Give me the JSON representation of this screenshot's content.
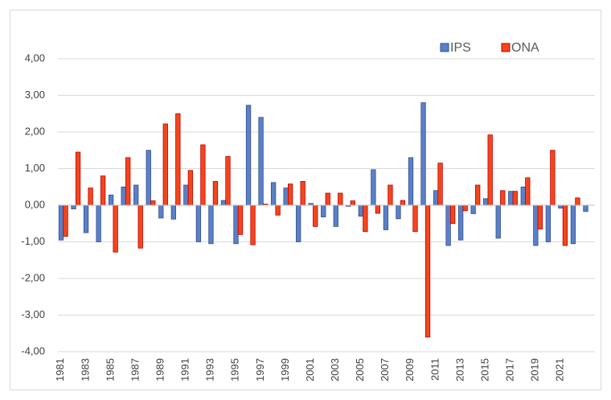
{
  "chart_data": {
    "type": "bar",
    "categories": [
      "1981",
      null,
      "1983",
      null,
      "1985",
      null,
      "1987",
      null,
      "1989",
      null,
      "1991",
      null,
      "1993",
      null,
      "1995",
      null,
      "1997",
      null,
      "1999",
      null,
      "2001",
      null,
      "2003",
      null,
      "2005",
      null,
      "2007",
      null,
      "2009",
      null,
      "2011",
      null,
      "2013",
      null,
      "2015",
      null,
      "2017",
      null,
      "2019",
      null,
      "2021",
      null,
      null
    ],
    "series": [
      {
        "name": "IPS",
        "color": "#5b80c8",
        "values": [
          -0.95,
          -0.1,
          -0.75,
          -1.0,
          0.28,
          0.5,
          0.55,
          1.5,
          -0.35,
          -0.38,
          0.55,
          -1.0,
          -1.05,
          0.13,
          -1.05,
          2.73,
          2.4,
          0.62,
          0.47,
          -1.0,
          0.05,
          -0.32,
          -0.58,
          -0.03,
          -0.3,
          0.97,
          -0.67,
          -0.37,
          1.3,
          2.8,
          0.4,
          -1.1,
          -0.95,
          -0.23,
          0.18,
          -0.9,
          0.38,
          0.5,
          -1.1,
          -1.0,
          -0.08,
          -1.05,
          -0.17
        ]
      },
      {
        "name": "ONA",
        "color": "#f4461c",
        "values": [
          -0.85,
          1.45,
          0.47,
          0.8,
          -1.28,
          1.3,
          -1.17,
          0.12,
          2.22,
          2.5,
          0.95,
          1.65,
          0.65,
          1.33,
          -0.8,
          -1.08,
          0.03,
          -0.27,
          0.58,
          0.65,
          -0.58,
          0.33,
          0.33,
          0.12,
          -0.72,
          -0.22,
          0.55,
          0.13,
          -0.72,
          -3.6,
          1.15,
          -0.5,
          -0.15,
          0.55,
          1.92,
          0.4,
          0.38,
          0.75,
          -0.65,
          1.5,
          -1.1,
          0.2,
          null
        ]
      }
    ],
    "ylim": [
      -4,
      4
    ],
    "yticks": [
      {
        "value": -4,
        "label": "-4,00"
      },
      {
        "value": -3,
        "label": "-3,00"
      },
      {
        "value": -2,
        "label": "-2,00"
      },
      {
        "value": -1,
        "label": "-1,00"
      },
      {
        "value": 0,
        "label": "0,00"
      },
      {
        "value": 1,
        "label": "1,00"
      },
      {
        "value": 2,
        "label": "2,00"
      },
      {
        "value": 3,
        "label": "3,00"
      },
      {
        "value": 4,
        "label": "4,00"
      }
    ],
    "grid": true,
    "legend": "top-right"
  }
}
